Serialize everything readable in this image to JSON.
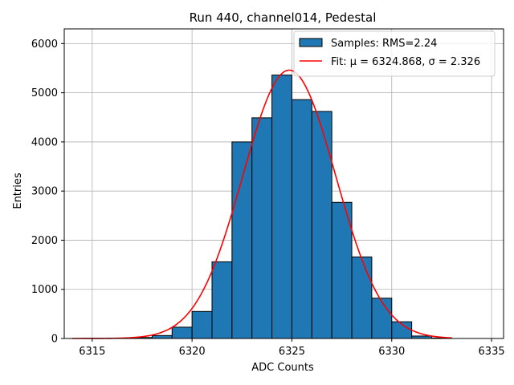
{
  "chart_data": {
    "type": "bar",
    "title": "Run 440, channel014, Pedestal",
    "xlabel": "ADC Counts",
    "ylabel": "Entries",
    "xlim": [
      6313.6,
      6335.6
    ],
    "ylim": [
      0,
      6300
    ],
    "xticks": [
      6315,
      6320,
      6325,
      6330,
      6335
    ],
    "xtick_labels": [
      "6315",
      "6320",
      "6325",
      "6330",
      "6335"
    ],
    "yticks": [
      0,
      1000,
      2000,
      3000,
      4000,
      5000,
      6000
    ],
    "ytick_labels": [
      "0",
      "1000",
      "2000",
      "3000",
      "4000",
      "5000",
      "6000"
    ],
    "grid": true,
    "legend_position": "top-right",
    "bin_width": 1,
    "bins": [
      {
        "x0": 6317,
        "value": 20
      },
      {
        "x0": 6318,
        "value": 60
      },
      {
        "x0": 6319,
        "value": 230
      },
      {
        "x0": 6320,
        "value": 550
      },
      {
        "x0": 6321,
        "value": 1560
      },
      {
        "x0": 6322,
        "value": 4000
      },
      {
        "x0": 6323,
        "value": 4490
      },
      {
        "x0": 6324,
        "value": 5360
      },
      {
        "x0": 6325,
        "value": 4860
      },
      {
        "x0": 6326,
        "value": 4620
      },
      {
        "x0": 6327,
        "value": 2770
      },
      {
        "x0": 6328,
        "value": 1660
      },
      {
        "x0": 6329,
        "value": 820
      },
      {
        "x0": 6330,
        "value": 340
      },
      {
        "x0": 6331,
        "value": 50
      },
      {
        "x0": 6332,
        "value": 10
      }
    ],
    "fit": {
      "mu": 6324.868,
      "sigma": 2.326,
      "amplitude": 5460,
      "x_range": [
        6314,
        6333
      ]
    },
    "series": [
      {
        "name": "Samples: RMS=2.24",
        "type": "histogram",
        "color": "#1f77b4"
      },
      {
        "name": "Fit: μ = 6324.868, σ = 2.326",
        "type": "line",
        "color": "#ff0000"
      }
    ]
  }
}
